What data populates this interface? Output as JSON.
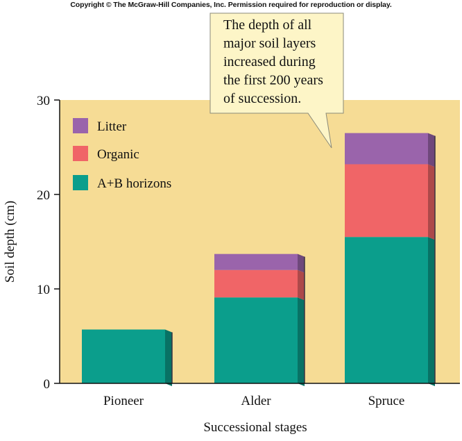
{
  "copyright": "Copyright © The McGraw-Hill Companies, Inc. Permission required for reproduction or display.",
  "chart_data": {
    "type": "bar",
    "stacked": true,
    "title": "",
    "xlabel": "Successional stages",
    "ylabel": "Soil depth (cm)",
    "ylim": [
      0,
      30
    ],
    "yticks": [
      0,
      10,
      20,
      30
    ],
    "grid": false,
    "legend_position": "top-left",
    "categories": [
      "Pioneer",
      "Alder",
      "Spruce"
    ],
    "series": [
      {
        "name": "A+B horizons",
        "values": [
          5.7,
          9.1,
          15.5
        ],
        "color": "#0b9e8c"
      },
      {
        "name": "Organic",
        "values": [
          0,
          2.9,
          7.7
        ],
        "color": "#f06567"
      },
      {
        "name": "Litter",
        "values": [
          0,
          1.7,
          3.3
        ],
        "color": "#9a64ab"
      }
    ],
    "legend_order": [
      "Litter",
      "Organic",
      "A+B horizons"
    ],
    "annotation": {
      "lines": [
        "The depth of all",
        "major soil layers",
        "increased during",
        "the first 200 years",
        "of succession."
      ],
      "points_to": "Spruce"
    },
    "colors": {
      "plot_background": "#f6dc95",
      "callout_background": "#fdf5c7"
    }
  }
}
